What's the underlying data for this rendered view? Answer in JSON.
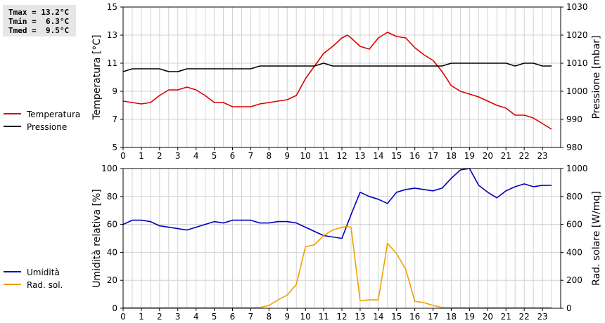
{
  "stats": {
    "tmax": "Tmax = 13.2°C",
    "tmin": "Tmin =  6.3°C",
    "tmed": "Tmed =  9.5°C"
  },
  "chart_data": [
    {
      "type": "line",
      "ylabel": "Temperatura [°C]",
      "y2label": "Pressione [mbar]",
      "ylim": [
        5,
        15
      ],
      "y2lim": [
        980,
        1030
      ],
      "yticks": [
        5,
        7,
        9,
        11,
        13,
        15
      ],
      "y2ticks": [
        980,
        990,
        1000,
        1010,
        1020,
        1030
      ],
      "xlim": [
        0,
        24
      ],
      "xticks": [
        0,
        1,
        2,
        3,
        4,
        5,
        6,
        7,
        8,
        9,
        10,
        11,
        12,
        13,
        14,
        15,
        16,
        17,
        18,
        19,
        20,
        21,
        22,
        23
      ],
      "grid": true,
      "legend_position": "left",
      "series": [
        {
          "name": "Temperatura",
          "color": "#dd0000",
          "axis": "left",
          "x": [
            0,
            0.5,
            1,
            1.5,
            2,
            2.5,
            3,
            3.5,
            4,
            4.5,
            5,
            5.5,
            6,
            6.5,
            7,
            7.5,
            8,
            8.5,
            9,
            9.5,
            10,
            10.5,
            11,
            11.5,
            12,
            12.3,
            12.5,
            13,
            13.5,
            14,
            14.5,
            15,
            15.5,
            16,
            16.5,
            17,
            17.5,
            18,
            18.5,
            19,
            19.5,
            20,
            20.5,
            21,
            21.5,
            22,
            22.5,
            23,
            23.5
          ],
          "y": [
            8.3,
            8.2,
            8.1,
            8.2,
            8.7,
            9.1,
            9.1,
            9.3,
            9.1,
            8.7,
            8.2,
            8.2,
            7.9,
            7.9,
            7.9,
            8.1,
            8.2,
            8.3,
            8.4,
            8.7,
            9.9,
            10.8,
            11.7,
            12.2,
            12.8,
            13.0,
            12.8,
            12.2,
            12.0,
            12.8,
            13.2,
            12.9,
            12.8,
            12.1,
            11.6,
            11.2,
            10.4,
            9.4,
            9.0,
            8.8,
            8.6,
            8.3,
            8.0,
            7.8,
            7.3,
            7.3,
            7.1,
            6.7,
            6.3
          ]
        },
        {
          "name": "Pressione",
          "color": "#000000",
          "axis": "right",
          "x": [
            0,
            0.5,
            1,
            1.5,
            2,
            2.5,
            3,
            3.5,
            4,
            4.5,
            5,
            5.5,
            6,
            6.5,
            7,
            7.5,
            8,
            8.5,
            9,
            9.5,
            10,
            10.5,
            11,
            11.5,
            12,
            12.5,
            13,
            13.5,
            14,
            14.5,
            15,
            15.5,
            16,
            16.5,
            17,
            17.5,
            18,
            18.5,
            19,
            19.5,
            20,
            20.5,
            21,
            21.5,
            22,
            22.5,
            23,
            23.5
          ],
          "y": [
            1007,
            1008,
            1008,
            1008,
            1008,
            1007,
            1007,
            1008,
            1008,
            1008,
            1008,
            1008,
            1008,
            1008,
            1008,
            1009,
            1009,
            1009,
            1009,
            1009,
            1009,
            1009,
            1010,
            1009,
            1009,
            1009,
            1009,
            1009,
            1009,
            1009,
            1009,
            1009,
            1009,
            1009,
            1009,
            1009,
            1010,
            1010,
            1010,
            1010,
            1010,
            1010,
            1010,
            1009,
            1010,
            1010,
            1009,
            1009
          ]
        }
      ]
    },
    {
      "type": "line",
      "ylabel": "Umidità relativa [%]",
      "y2label": "Rad. solare [W/mq]",
      "ylim": [
        0,
        100
      ],
      "y2lim": [
        0,
        1000
      ],
      "yticks": [
        0,
        20,
        40,
        60,
        80,
        100
      ],
      "y2ticks": [
        0,
        200,
        400,
        600,
        800,
        1000
      ],
      "xlim": [
        0,
        24
      ],
      "xticks": [
        0,
        1,
        2,
        3,
        4,
        5,
        6,
        7,
        8,
        9,
        10,
        11,
        12,
        13,
        14,
        15,
        16,
        17,
        18,
        19,
        20,
        21,
        22,
        23
      ],
      "grid": true,
      "legend_position": "left",
      "series": [
        {
          "name": "Umidità",
          "color": "#0000bb",
          "axis": "left",
          "x": [
            0,
            0.5,
            1,
            1.5,
            2,
            2.5,
            3,
            3.5,
            4,
            4.5,
            5,
            5.5,
            6,
            6.5,
            7,
            7.5,
            8,
            8.5,
            9,
            9.5,
            10,
            10.5,
            11,
            11.5,
            12,
            12.5,
            13,
            13.5,
            14,
            14.5,
            15,
            15.5,
            16,
            16.5,
            17,
            17.5,
            18,
            18.5,
            19,
            19.5,
            20,
            20.5,
            21,
            21.5,
            22,
            22.5,
            23,
            23.5
          ],
          "y": [
            60,
            63,
            63,
            62,
            59,
            58,
            57,
            56,
            58,
            60,
            62,
            61,
            63,
            63,
            63,
            61,
            61,
            62,
            62,
            61,
            58,
            55,
            52,
            51,
            50,
            67,
            83,
            80,
            78,
            75,
            83,
            85,
            86,
            85,
            84,
            86,
            93,
            99,
            100,
            88,
            83,
            79,
            84,
            87,
            89,
            87,
            88,
            88
          ]
        },
        {
          "name": "Rad. sol.",
          "color": "#f0a000",
          "axis": "right",
          "x": [
            0,
            1,
            2,
            3,
            4,
            5,
            6,
            7,
            7.5,
            8,
            8.5,
            9,
            9.5,
            10,
            10.5,
            11,
            11.5,
            12,
            12.3,
            12.5,
            13,
            13.5,
            14,
            14.5,
            15,
            15.5,
            16,
            16.5,
            17,
            17.5,
            18,
            19,
            20,
            21,
            22,
            23,
            23.5
          ],
          "y": [
            5,
            5,
            5,
            5,
            5,
            5,
            5,
            5,
            5,
            20,
            60,
            95,
            170,
            440,
            455,
            520,
            560,
            580,
            585,
            580,
            55,
            60,
            60,
            465,
            390,
            280,
            50,
            40,
            20,
            5,
            5,
            5,
            5,
            5,
            5,
            5,
            5
          ]
        }
      ]
    }
  ]
}
